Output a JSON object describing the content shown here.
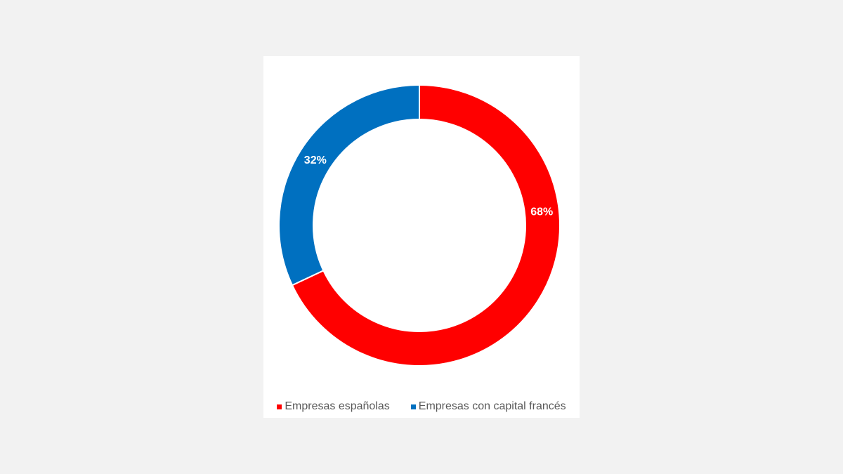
{
  "chart_data": {
    "type": "pie",
    "variant": "donut",
    "categories": [
      "Empresas españolas",
      "Empresas con capital francés"
    ],
    "values": [
      68,
      32
    ],
    "labels": [
      "68%",
      "32%"
    ],
    "colors": [
      "#ff0000",
      "#0070c0"
    ],
    "legend_position": "bottom"
  }
}
